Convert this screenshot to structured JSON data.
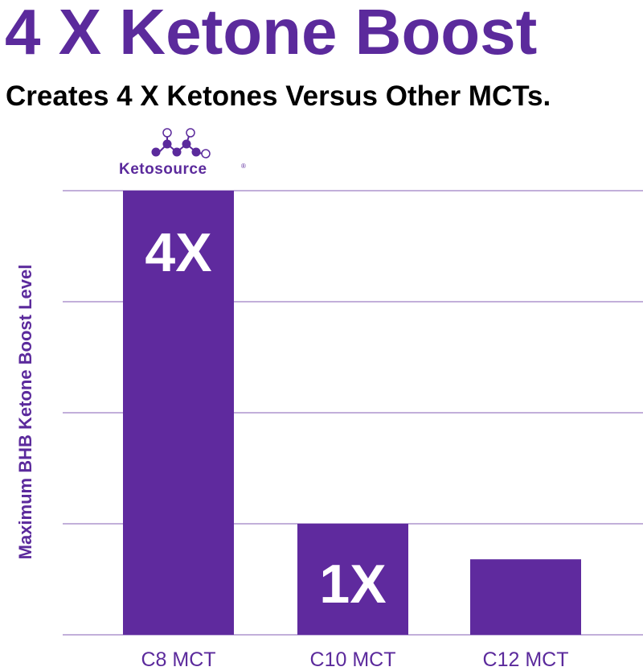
{
  "header": {
    "title": "4 X Ketone Boost",
    "subtitle": "Creates 4 X Ketones Versus Other MCTs."
  },
  "logo": {
    "brand": "Ketosource",
    "registered": "®",
    "icon": "molecule-icon"
  },
  "colors": {
    "brand_purple": "#5b2a9c",
    "bar_purple": "#5f2a9e",
    "gridline": "#5b2a9c"
  },
  "chart_data": {
    "type": "bar",
    "title": "",
    "xlabel": "",
    "ylabel": "Maximum BHB Ketone Boost Level",
    "categories": [
      "C8 MCT",
      "C10 MCT",
      "C12 MCT"
    ],
    "values": [
      4,
      1,
      0.68
    ],
    "bar_labels": [
      "4X",
      "1X",
      ""
    ],
    "ylim": [
      0,
      4
    ],
    "grid": true,
    "legend": "none"
  }
}
